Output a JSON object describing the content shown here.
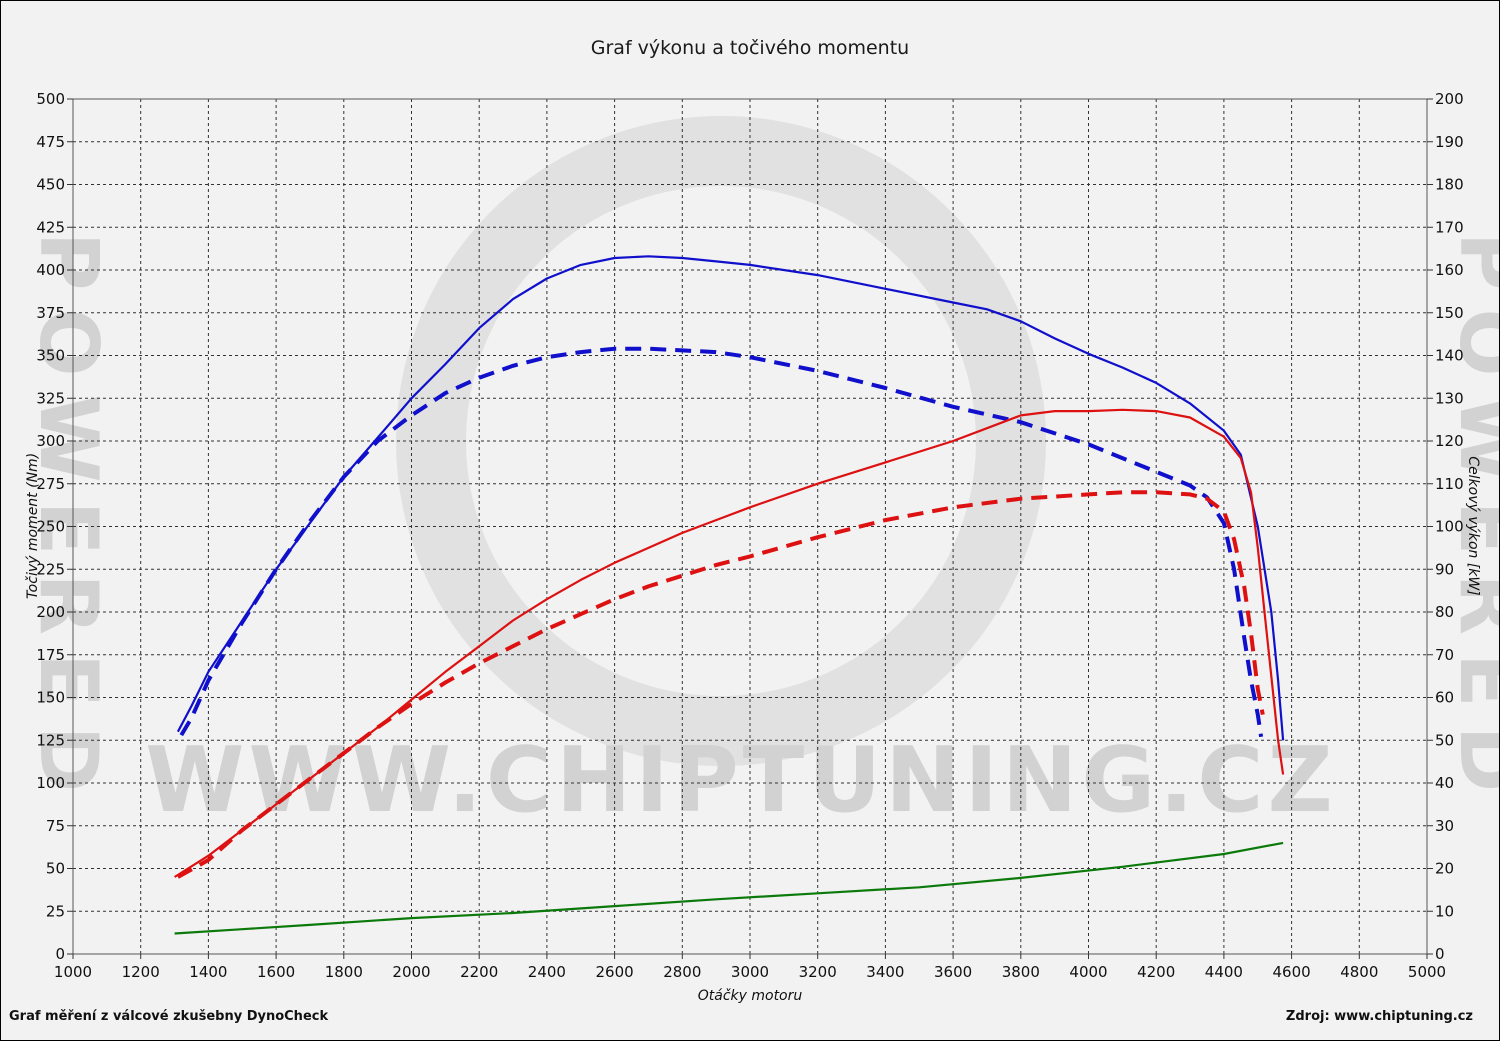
{
  "chart_data": {
    "type": "line",
    "title": "Graf výkonu a točivého momentu",
    "xlabel": "Otáčky motoru",
    "ylabel_left": "Točivý moment (Nm)",
    "ylabel_right": "Celkový výkon [kW]",
    "xlim": [
      1000,
      5000
    ],
    "ylim_left": [
      0,
      500
    ],
    "ylim_right": [
      0,
      200
    ],
    "x_ticks": [
      1000,
      1200,
      1400,
      1600,
      1800,
      2000,
      2200,
      2400,
      2600,
      2800,
      3000,
      3200,
      3400,
      3600,
      3800,
      4000,
      4200,
      4400,
      4600,
      4800,
      5000
    ],
    "y_ticks_left": [
      0,
      25,
      50,
      75,
      100,
      125,
      150,
      175,
      200,
      225,
      250,
      275,
      300,
      325,
      350,
      375,
      400,
      425,
      450,
      475,
      500
    ],
    "y_ticks_right": [
      0,
      10,
      20,
      30,
      40,
      50,
      60,
      70,
      80,
      90,
      100,
      110,
      120,
      130,
      140,
      150,
      160,
      170,
      180,
      190,
      200
    ],
    "grid": true,
    "series": [
      {
        "axis": "left",
        "color": "#1010cc",
        "dash": false,
        "points": [
          [
            1310,
            130
          ],
          [
            1350,
            145
          ],
          [
            1400,
            165
          ],
          [
            1500,
            195
          ],
          [
            1600,
            225
          ],
          [
            1700,
            252
          ],
          [
            1800,
            279
          ],
          [
            1900,
            302
          ],
          [
            2000,
            325
          ],
          [
            2100,
            345
          ],
          [
            2200,
            366
          ],
          [
            2300,
            383
          ],
          [
            2400,
            395
          ],
          [
            2500,
            403
          ],
          [
            2600,
            407
          ],
          [
            2700,
            408
          ],
          [
            2800,
            407
          ],
          [
            2900,
            405
          ],
          [
            3000,
            403
          ],
          [
            3200,
            397
          ],
          [
            3400,
            389
          ],
          [
            3600,
            381
          ],
          [
            3700,
            377
          ],
          [
            3800,
            370
          ],
          [
            3900,
            360
          ],
          [
            4000,
            351
          ],
          [
            4100,
            343
          ],
          [
            4200,
            334
          ],
          [
            4300,
            322
          ],
          [
            4400,
            306
          ],
          [
            4450,
            292
          ],
          [
            4500,
            250
          ],
          [
            4540,
            200
          ],
          [
            4560,
            160
          ],
          [
            4575,
            125
          ]
        ]
      },
      {
        "axis": "left",
        "color": "#1010cc",
        "dash": true,
        "points": [
          [
            1320,
            128
          ],
          [
            1350,
            138
          ],
          [
            1400,
            160
          ],
          [
            1500,
            194
          ],
          [
            1600,
            225
          ],
          [
            1700,
            253
          ],
          [
            1800,
            279
          ],
          [
            1900,
            300
          ],
          [
            2000,
            315
          ],
          [
            2100,
            328
          ],
          [
            2200,
            337
          ],
          [
            2300,
            344
          ],
          [
            2400,
            349
          ],
          [
            2500,
            352
          ],
          [
            2600,
            354
          ],
          [
            2700,
            354
          ],
          [
            2800,
            353
          ],
          [
            2900,
            352
          ],
          [
            3000,
            349
          ],
          [
            3200,
            341
          ],
          [
            3400,
            331
          ],
          [
            3600,
            320
          ],
          [
            3800,
            311
          ],
          [
            4000,
            298
          ],
          [
            4200,
            282
          ],
          [
            4300,
            274
          ],
          [
            4350,
            267
          ],
          [
            4400,
            252
          ],
          [
            4430,
            225
          ],
          [
            4460,
            185
          ],
          [
            4480,
            160
          ],
          [
            4500,
            140
          ],
          [
            4510,
            127
          ]
        ]
      },
      {
        "axis": "right",
        "color": "#dd1111",
        "dash": false,
        "points": [
          [
            1300,
            18
          ],
          [
            1400,
            23
          ],
          [
            1500,
            29
          ],
          [
            1600,
            35
          ],
          [
            1700,
            41
          ],
          [
            1800,
            47
          ],
          [
            1900,
            53
          ],
          [
            2000,
            59.5
          ],
          [
            2100,
            66
          ],
          [
            2200,
            72
          ],
          [
            2300,
            78
          ],
          [
            2400,
            83
          ],
          [
            2500,
            87.5
          ],
          [
            2600,
            91.5
          ],
          [
            2700,
            95
          ],
          [
            2800,
            98.5
          ],
          [
            2900,
            101.5
          ],
          [
            3000,
            104.5
          ],
          [
            3200,
            110
          ],
          [
            3400,
            115
          ],
          [
            3600,
            120
          ],
          [
            3700,
            123
          ],
          [
            3800,
            126
          ],
          [
            3900,
            127
          ],
          [
            4000,
            127
          ],
          [
            4100,
            127.3
          ],
          [
            4200,
            127
          ],
          [
            4300,
            125.5
          ],
          [
            4400,
            121
          ],
          [
            4450,
            116
          ],
          [
            4480,
            108
          ],
          [
            4500,
            95
          ],
          [
            4520,
            80
          ],
          [
            4540,
            65
          ],
          [
            4560,
            50
          ],
          [
            4575,
            42
          ]
        ]
      },
      {
        "axis": "right",
        "color": "#dd1111",
        "dash": true,
        "points": [
          [
            1310,
            18
          ],
          [
            1400,
            22
          ],
          [
            1500,
            29
          ],
          [
            1600,
            35
          ],
          [
            1700,
            41
          ],
          [
            1800,
            47
          ],
          [
            1900,
            53
          ],
          [
            2000,
            58.5
          ],
          [
            2100,
            63.5
          ],
          [
            2200,
            68
          ],
          [
            2300,
            72
          ],
          [
            2400,
            76
          ],
          [
            2500,
            79.5
          ],
          [
            2600,
            83
          ],
          [
            2700,
            86
          ],
          [
            2800,
            88.5
          ],
          [
            2900,
            91
          ],
          [
            3000,
            93
          ],
          [
            3200,
            97.5
          ],
          [
            3400,
            101.5
          ],
          [
            3600,
            104.5
          ],
          [
            3800,
            106.5
          ],
          [
            4000,
            107.5
          ],
          [
            4100,
            108
          ],
          [
            4200,
            108
          ],
          [
            4300,
            107.5
          ],
          [
            4350,
            106.5
          ],
          [
            4400,
            103.5
          ],
          [
            4430,
            97
          ],
          [
            4460,
            86
          ],
          [
            4480,
            75
          ],
          [
            4500,
            62
          ],
          [
            4515,
            56
          ]
        ]
      },
      {
        "axis": "left",
        "color": "#0b7a0b",
        "dash": false,
        "points": [
          [
            1300,
            12
          ],
          [
            1500,
            14.5
          ],
          [
            1700,
            17
          ],
          [
            2000,
            21
          ],
          [
            2300,
            24
          ],
          [
            2600,
            28
          ],
          [
            2900,
            32
          ],
          [
            3200,
            35.5
          ],
          [
            3500,
            39
          ],
          [
            3800,
            44.5
          ],
          [
            4100,
            51
          ],
          [
            4400,
            58.5
          ],
          [
            4575,
            65
          ]
        ]
      }
    ],
    "footer_left": "Graf měření z válcové zkušebny DynoCheck",
    "footer_right": "Zdroj: www.chiptuning.cz",
    "watermark_main": "WWW.CHIPTUNING.CZ",
    "watermark_side": "POWERED"
  }
}
